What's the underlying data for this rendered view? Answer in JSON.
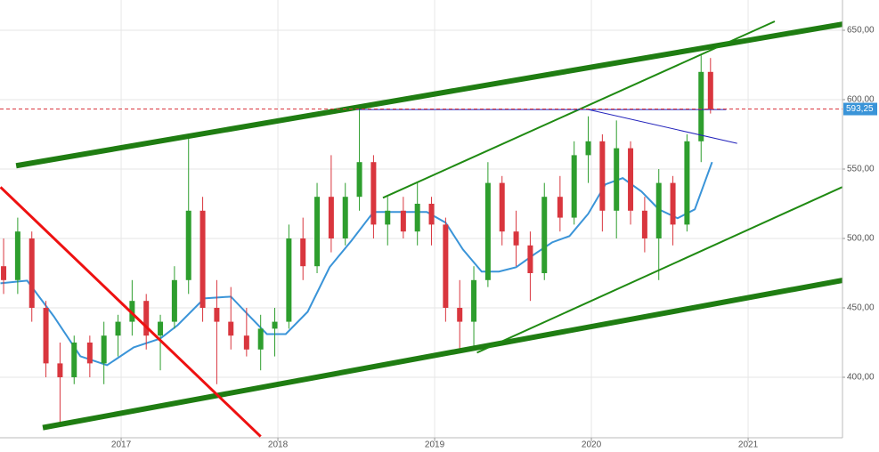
{
  "chart_data": {
    "type": "candlestick",
    "xlim": [
      2016.227,
      2021.602
    ],
    "ylim": [
      356.4,
      671.8
    ],
    "xticks": [
      2017,
      2018,
      2019,
      2020,
      2021
    ],
    "yticks": [
      {
        "value": 400,
        "label": "400,00"
      },
      {
        "value": 450,
        "label": "450,00"
      },
      {
        "value": 500,
        "label": "500,00"
      },
      {
        "value": 550,
        "label": "550,00"
      },
      {
        "value": 600,
        "label": "600,00"
      },
      {
        "value": 650,
        "label": "650,00"
      }
    ],
    "grid": true,
    "up_color": "#2e9e2e",
    "down_color": "#d9363e",
    "x": [
      2016.25,
      2016.34,
      2016.43,
      2016.52,
      2016.61,
      2016.7,
      2016.8,
      2016.89,
      2016.98,
      2017.07,
      2017.16,
      2017.25,
      2017.34,
      2017.43,
      2017.52,
      2017.61,
      2017.7,
      2017.8,
      2017.89,
      2017.98,
      2018.07,
      2018.16,
      2018.25,
      2018.34,
      2018.43,
      2018.52,
      2018.61,
      2018.7,
      2018.8,
      2018.89,
      2018.98,
      2019.07,
      2019.16,
      2019.25,
      2019.34,
      2019.43,
      2019.52,
      2019.61,
      2019.7,
      2019.8,
      2019.89,
      2019.98,
      2020.07,
      2020.16,
      2020.25,
      2020.34,
      2020.43,
      2020.52,
      2020.61,
      2020.7,
      2020.76
    ],
    "open": [
      480,
      470,
      500,
      450,
      410,
      400,
      425,
      410,
      430,
      440,
      455,
      430,
      440,
      470,
      520,
      450,
      440,
      430,
      420,
      435,
      440,
      500,
      480,
      530,
      500,
      530,
      555,
      510,
      520,
      505,
      525,
      510,
      450,
      440,
      470,
      540,
      505,
      495,
      475,
      530,
      515,
      560,
      570,
      520,
      565,
      520,
      500,
      540,
      510,
      570,
      620
    ],
    "high": [
      500,
      515,
      505,
      455,
      425,
      430,
      430,
      440,
      445,
      470,
      460,
      445,
      480,
      575,
      530,
      470,
      465,
      450,
      445,
      450,
      510,
      515,
      540,
      560,
      540,
      593,
      560,
      530,
      530,
      540,
      530,
      515,
      470,
      480,
      555,
      545,
      520,
      505,
      540,
      545,
      570,
      588,
      575,
      585,
      570,
      530,
      550,
      545,
      575,
      632,
      630
    ],
    "low": [
      460,
      460,
      440,
      400,
      365,
      395,
      400,
      395,
      415,
      430,
      420,
      405,
      435,
      460,
      440,
      395,
      420,
      415,
      405,
      415,
      435,
      470,
      475,
      490,
      495,
      520,
      500,
      495,
      500,
      495,
      495,
      440,
      420,
      420,
      465,
      495,
      480,
      455,
      470,
      505,
      510,
      540,
      505,
      500,
      510,
      490,
      470,
      495,
      505,
      555,
      590
    ],
    "close": [
      470,
      505,
      450,
      410,
      400,
      425,
      410,
      430,
      440,
      455,
      430,
      440,
      470,
      520,
      450,
      440,
      430,
      420,
      435,
      440,
      500,
      480,
      530,
      500,
      530,
      555,
      510,
      520,
      505,
      525,
      510,
      450,
      440,
      470,
      540,
      505,
      495,
      475,
      530,
      515,
      560,
      570,
      520,
      565,
      520,
      500,
      540,
      510,
      570,
      620,
      593.25
    ],
    "ma": {
      "color": "#3a94d8",
      "x": [
        2016.23,
        2016.4,
        2016.57,
        2016.74,
        2016.91,
        2017.08,
        2017.25,
        2017.36,
        2017.53,
        2017.7,
        2017.82,
        2017.93,
        2018.05,
        2018.19,
        2018.33,
        2018.47,
        2018.61,
        2018.78,
        2018.95,
        2019.07,
        2019.18,
        2019.3,
        2019.41,
        2019.52,
        2019.64,
        2019.75,
        2019.86,
        2019.98,
        2020.09,
        2020.2,
        2020.32,
        2020.43,
        2020.55,
        2020.66,
        2020.77
      ],
      "values": [
        467.7,
        469.6,
        443.9,
        415.1,
        408.7,
        421.5,
        427.9,
        437.5,
        456.8,
        458.1,
        443.9,
        431.1,
        431.1,
        447.2,
        479.3,
        498.5,
        519.1,
        519.1,
        519.1,
        511.4,
        492.1,
        476.1,
        476.1,
        479.3,
        488.9,
        497.2,
        501.7,
        517.8,
        539.0,
        543.5,
        533.8,
        521.0,
        514.6,
        521.0,
        555.0
      ]
    },
    "trendlines": [
      {
        "x": [
          2016.33,
          2021.84
        ],
        "y": [
          552.4,
          659.0
        ],
        "color": "#1f7d12",
        "width": 6
      },
      {
        "x": [
          2016.5,
          2021.84
        ],
        "y": [
          363.7,
          474.8
        ],
        "color": "#1f7d12",
        "width": 6
      },
      {
        "x": [
          2016.23,
          2017.89
        ],
        "y": [
          537.0,
          357.3
        ],
        "color": "#ee1111",
        "width": 3
      },
      {
        "x": [
          2018.67,
          2021.17
        ],
        "y": [
          529.3,
          656.4
        ],
        "color": "#1f8a12",
        "width": 2
      },
      {
        "x": [
          2019.27,
          2021.6
        ],
        "y": [
          417.7,
          537.0
        ],
        "color": "#1f8a12",
        "width": 2
      },
      {
        "x": [
          2018.5,
          2020.86
        ],
        "y": [
          592.9,
          592.9
        ],
        "color": "#2222bb",
        "width": 1
      },
      {
        "x": [
          2019.98,
          2020.93
        ],
        "y": [
          592.9,
          568.5
        ],
        "color": "#2222bb",
        "width": 1
      }
    ],
    "last_price": {
      "value": 593.25,
      "label": "593,25",
      "color": "#d9363e",
      "badge_color": "#3a94d8"
    }
  }
}
